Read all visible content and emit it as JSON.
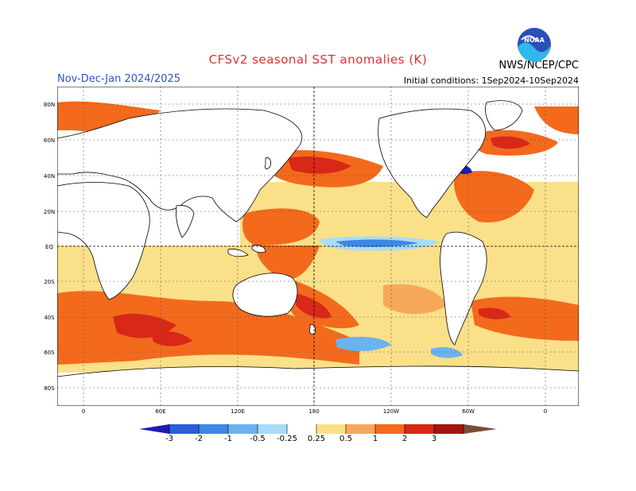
{
  "header": {
    "title": "CFSv2 seasonal SST anomalies (K)",
    "season": "Nov-Dec-Jan 2024/2025",
    "initial_conditions": "Initial conditions: 1Sep2024-10Sep2024",
    "agency": "NWS/NCEP/CPC",
    "logo_text": "NOAA"
  },
  "map": {
    "lat_labels": [
      "80N",
      "60N",
      "40N",
      "20N",
      "EQ",
      "20S",
      "40S",
      "60S",
      "80S"
    ],
    "lon_labels": [
      "0",
      "60E",
      "120E",
      "180",
      "120W",
      "60W",
      "0"
    ]
  },
  "colorbar": {
    "labels": [
      "-3",
      "-2",
      "-1",
      "-0.5",
      "-0.25",
      "0.25",
      "0.5",
      "1",
      "2",
      "3"
    ],
    "colors": [
      "#1c1cb4",
      "#2a5fd8",
      "#3b88e6",
      "#6cb2f0",
      "#a8dcf8",
      "#ffffff",
      "#fbe08a",
      "#f8a85a",
      "#f36a1c",
      "#d82818",
      "#a41410",
      "#7a4a3a"
    ]
  }
}
